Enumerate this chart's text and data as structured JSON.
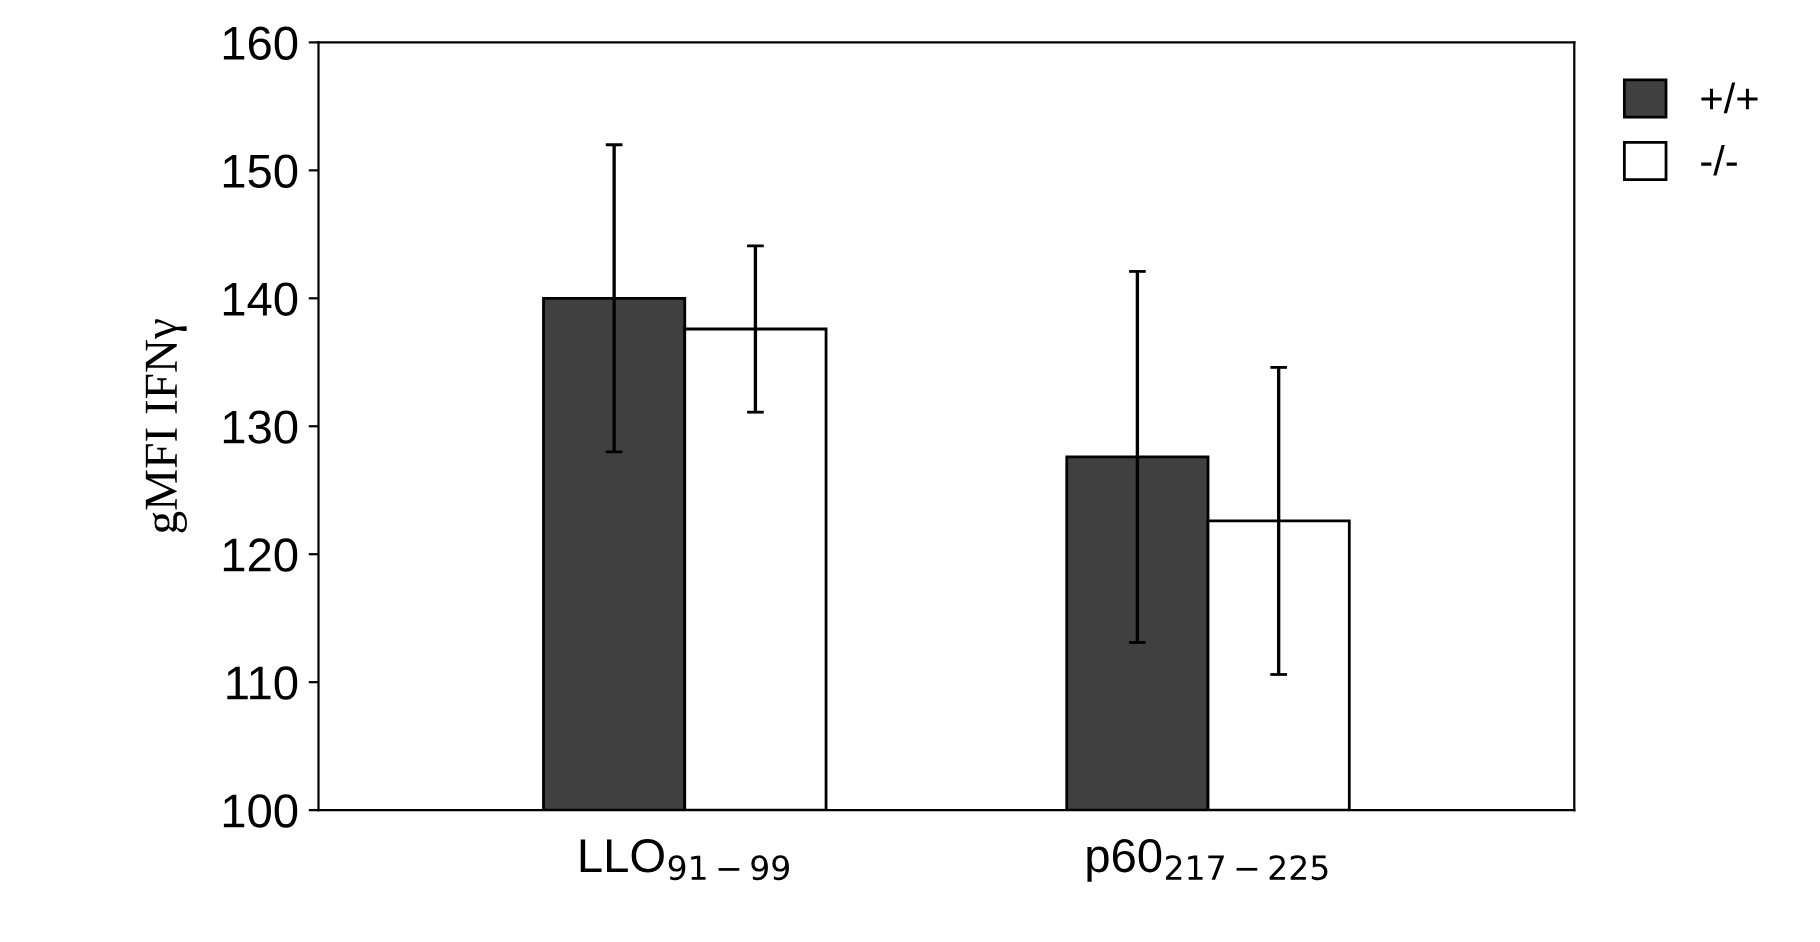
{
  "chart_data": {
    "type": "bar",
    "ylabel": "gMFI IFNγ",
    "categories": [
      "LLO$_{91−99}$",
      "p60$_{217−225}$"
    ],
    "series": [
      {
        "name": "+/+",
        "color": "#404040",
        "values": [
          140,
          127.6
        ],
        "errors": [
          12,
          14.5
        ]
      },
      {
        "name": "-/-",
        "color": "#ffffff",
        "values": [
          137.6,
          122.6
        ],
        "errors": [
          6.5,
          12
        ]
      }
    ],
    "ylim": [
      100,
      160
    ],
    "yticks": [
      100,
      110,
      120,
      130,
      140,
      150,
      160
    ],
    "grid": false,
    "legend": "top right"
  }
}
